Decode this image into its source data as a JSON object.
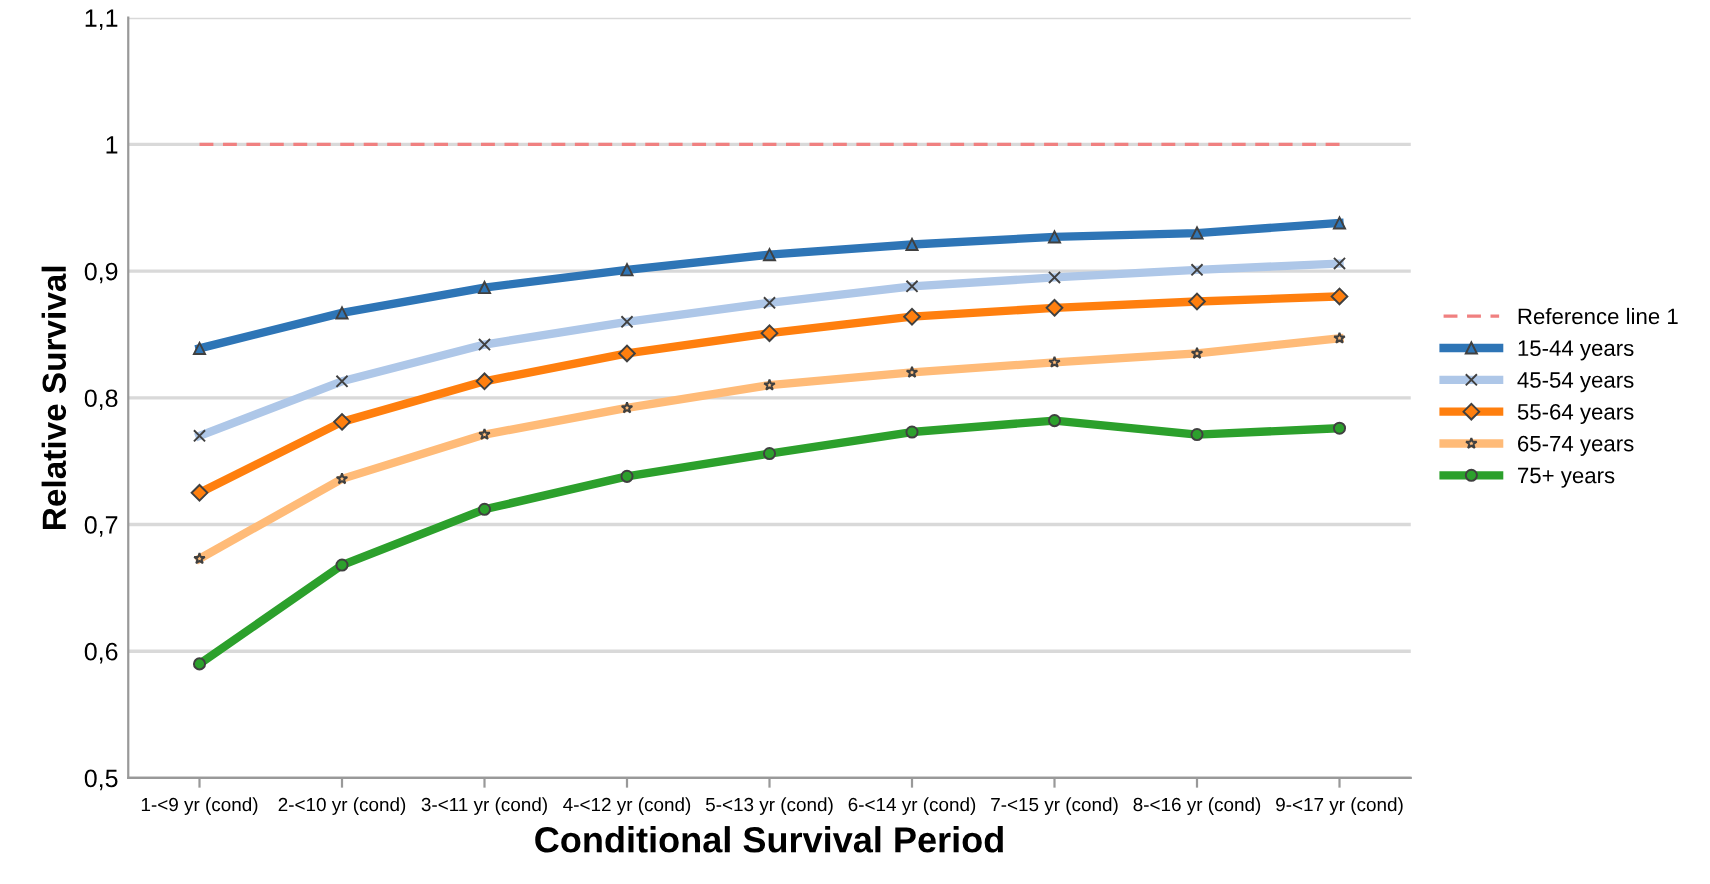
{
  "chart_data": {
    "type": "line",
    "xlabel": "Conditional Survival Period",
    "ylabel": "Relative Survival",
    "categories": [
      "1-<9 yr (cond)",
      "2-<10 yr (cond)",
      "3-<11 yr (cond)",
      "4-<12 yr (cond)",
      "5-<13 yr (cond)",
      "6-<14 yr (cond)",
      "7-<15 yr (cond)",
      "8-<16 yr (cond)",
      "9-<17 yr (cond)"
    ],
    "series": [
      {
        "name": "Reference line 1",
        "color": "#f08080",
        "line_style": "dashed",
        "marker": "none",
        "values": [
          1,
          1,
          1,
          1,
          1,
          1,
          1,
          1,
          1
        ]
      },
      {
        "name": "15-44 years",
        "color": "#2e75b6",
        "marker": "triangle",
        "values": [
          0.839,
          0.867,
          0.887,
          0.901,
          0.913,
          0.921,
          0.927,
          0.93,
          0.938
        ]
      },
      {
        "name": "45-54 years",
        "color": "#aec7e8",
        "marker": "cross",
        "values": [
          0.77,
          0.813,
          0.842,
          0.86,
          0.875,
          0.888,
          0.895,
          0.901,
          0.906
        ]
      },
      {
        "name": "55-64 years",
        "color": "#ff7f0e",
        "marker": "diamond",
        "values": [
          0.725,
          0.781,
          0.813,
          0.835,
          0.851,
          0.864,
          0.871,
          0.876,
          0.88
        ]
      },
      {
        "name": "65-74 years",
        "color": "#ffbb78",
        "marker": "star",
        "values": [
          0.673,
          0.736,
          0.771,
          0.792,
          0.81,
          0.82,
          0.828,
          0.835,
          0.847
        ]
      },
      {
        "name": "75+ years",
        "color": "#2ca02c",
        "marker": "circle",
        "values": [
          0.59,
          0.668,
          0.712,
          0.738,
          0.756,
          0.773,
          0.782,
          0.771,
          0.776
        ]
      }
    ],
    "ylim": [
      0.5,
      1.1
    ],
    "yticks": [
      {
        "value": 0.5,
        "label": "0,5"
      },
      {
        "value": 0.6,
        "label": "0,6"
      },
      {
        "value": 0.7,
        "label": "0,7"
      },
      {
        "value": 0.8,
        "label": "0,8"
      },
      {
        "value": 0.9,
        "label": "0,9"
      },
      1,
      {
        "value": 1.1,
        "label": "1,1"
      }
    ],
    "grid": "y",
    "legend": "right"
  }
}
